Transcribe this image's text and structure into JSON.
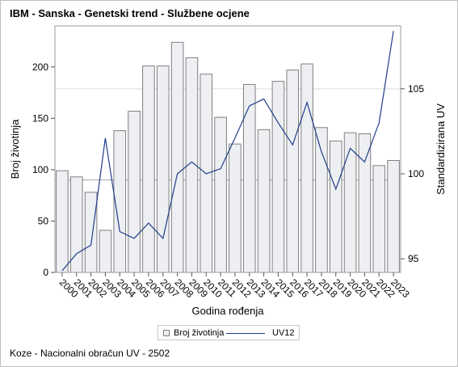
{
  "chart_title": "IBM - Sanska - Genetski trend - Službene ocjene",
  "footnote": "Koze - Nacionalni obračun UV - 2502",
  "legend": {
    "bar_label": "Broj životinja",
    "line_label": "UV12"
  },
  "colors": {
    "bar_fill": "#edeff3",
    "bar_stroke": "#7f7f7f",
    "line": "#1f3c88",
    "refline": "#a6a6a6",
    "refline_light": "#d9d9d9"
  },
  "chart_data": {
    "type": "bar",
    "title": "IBM - Sanska - Genetski trend - Službene ocjene",
    "xlabel": "Godina rođenja",
    "ylabel": "Broj životinja",
    "y2label": "Standardizirana UV",
    "categories": [
      "2000",
      "2001",
      "2002",
      "2003",
      "2004",
      "2005",
      "2006",
      "2007",
      "2008",
      "2009",
      "2010",
      "2011",
      "2012",
      "2013",
      "2014",
      "2015",
      "2016",
      "2017",
      "2018",
      "2019",
      "2020",
      "2021",
      "2022",
      "2023"
    ],
    "ylim": [
      0,
      240
    ],
    "yticks": [
      0,
      50,
      100,
      150,
      200
    ],
    "y2lim": [
      94.2,
      108.7
    ],
    "y2ticks": [
      95,
      100,
      105
    ],
    "reference_lines": {
      "left_axis": 90,
      "right_axis": 105
    },
    "legend_position": "bottom",
    "grid": false,
    "series": [
      {
        "name": "Broj životinja",
        "type": "bar",
        "axis": "left",
        "values": [
          99,
          93,
          78,
          41,
          138,
          157,
          201,
          201,
          224,
          209,
          193,
          151,
          125,
          183,
          139,
          186,
          197,
          203,
          141,
          128,
          136,
          135,
          104,
          109
        ]
      },
      {
        "name": "UV12",
        "type": "line",
        "axis": "right",
        "values": [
          94.3,
          95.3,
          95.8,
          102.1,
          96.6,
          96.2,
          97.1,
          96.2,
          100.0,
          100.7,
          100.0,
          100.3,
          102.1,
          104.0,
          104.4,
          103.0,
          101.7,
          104.2,
          101.3,
          99.1,
          101.5,
          100.7,
          103.0,
          108.4
        ]
      }
    ]
  }
}
